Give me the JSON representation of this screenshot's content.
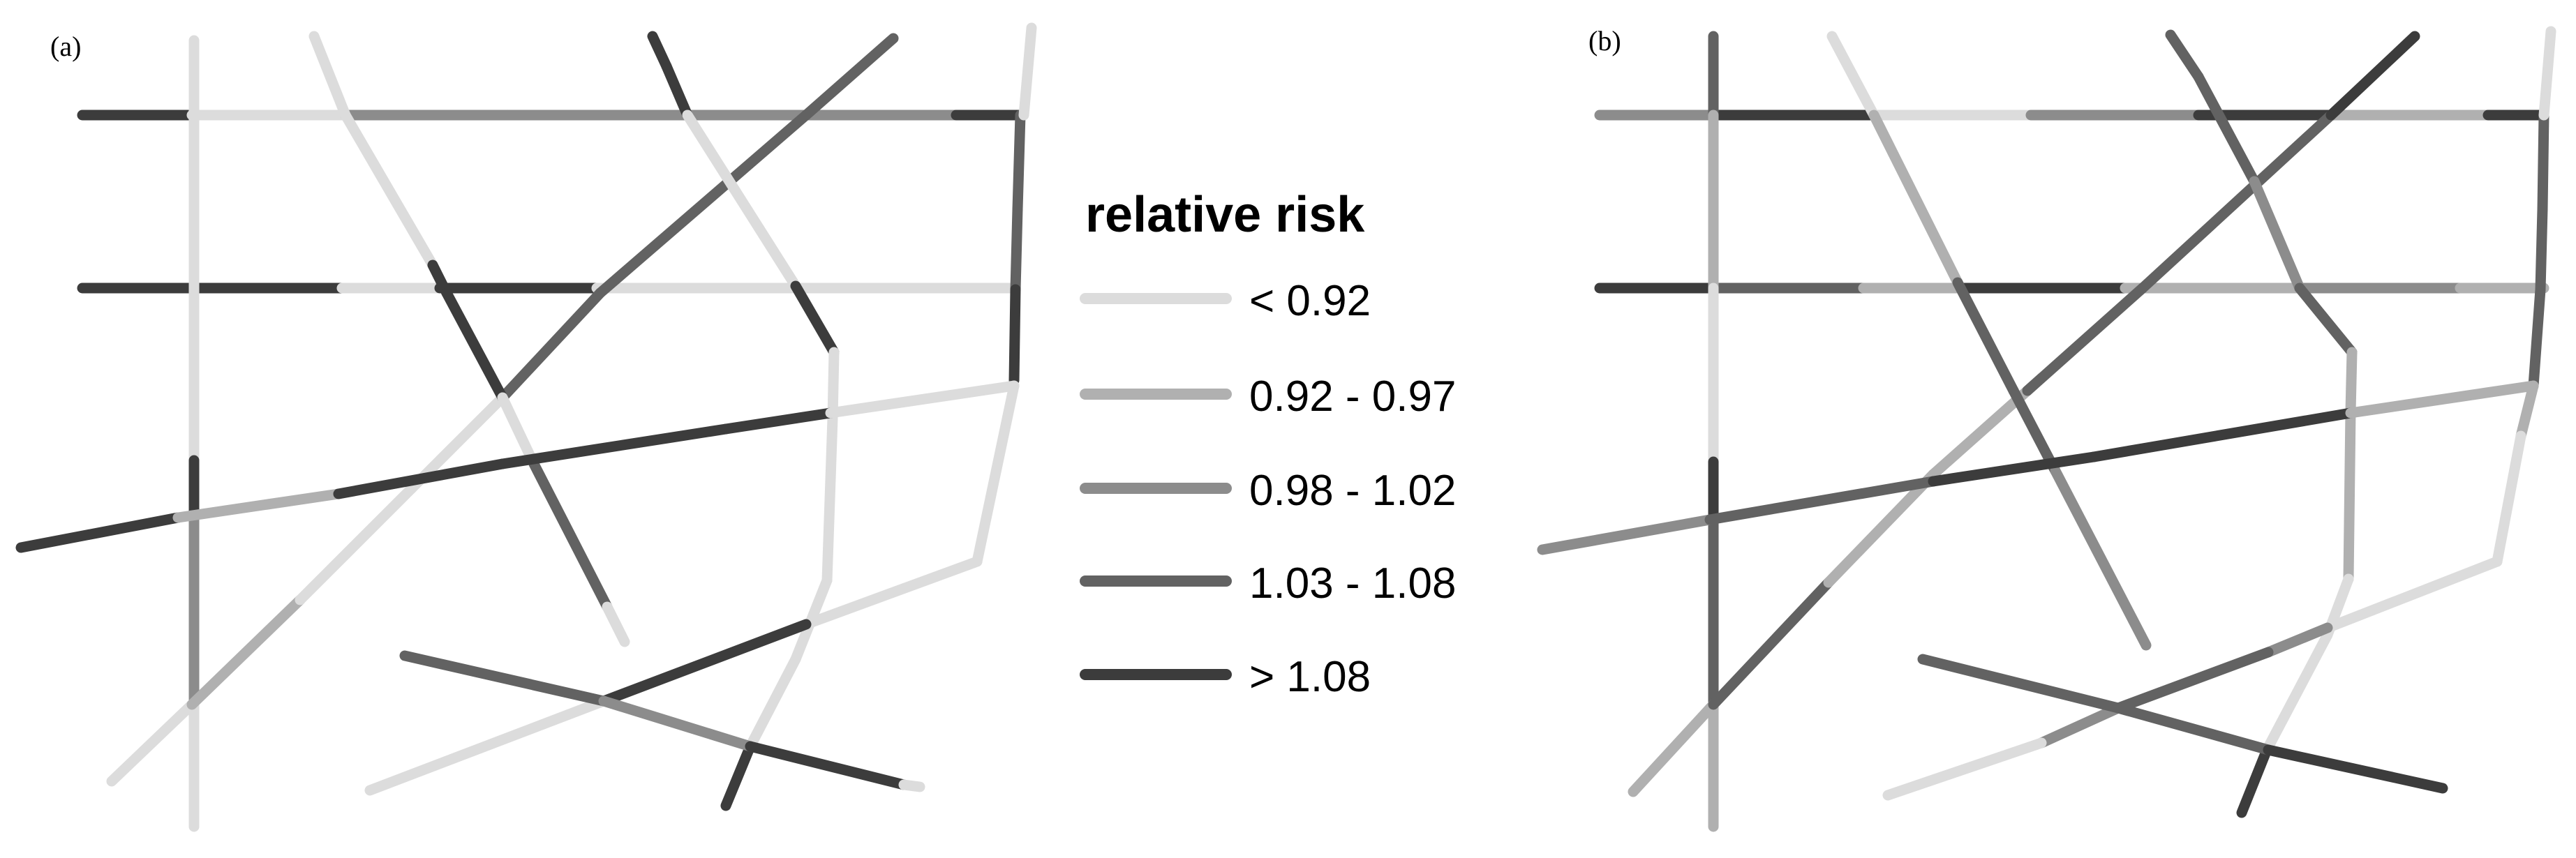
{
  "panels": [
    {
      "label": "(a)"
    },
    {
      "label": "(b)"
    }
  ],
  "legend": {
    "title": "relative risk",
    "items": [
      {
        "label": "< 0.92",
        "color": "#dcdcdc"
      },
      {
        "label": "0.92 - 0.97",
        "color": "#b0b0b0"
      },
      {
        "label": "0.98 - 1.02",
        "color": "#8c8c8c"
      },
      {
        "label": "1.03 - 1.08",
        "color": "#626262"
      },
      {
        "label": "> 1.08",
        "color": "#3c3c3c"
      }
    ]
  }
}
